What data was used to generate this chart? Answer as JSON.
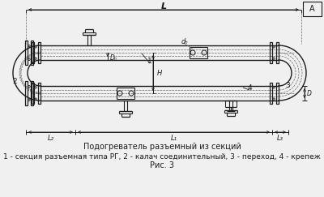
{
  "bg_color": "#f0f0f0",
  "line_color": "#1a1a1a",
  "dash_color": "#666666",
  "title1": "Подогреватель разъемный из секций",
  "title2": "1 - секция разъемная типа РГ, 2 - калач соединительный, 3 - переход, 4 - крепеж",
  "title3": "Рис. 3",
  "label_L": "L",
  "label_L1": "L₁",
  "label_L2": "L₂",
  "label_L3": "L₃",
  "label_DH_top": "Dₕ",
  "label_dH": "dₕ",
  "label_H": "H",
  "label_1": "1",
  "label_2": "2",
  "label_3": "3",
  "label_4": "4",
  "font_size_title": 7.0,
  "font_size_caption": 6.5,
  "font_size_label": 7.0,
  "font_size_dim": 6.0
}
